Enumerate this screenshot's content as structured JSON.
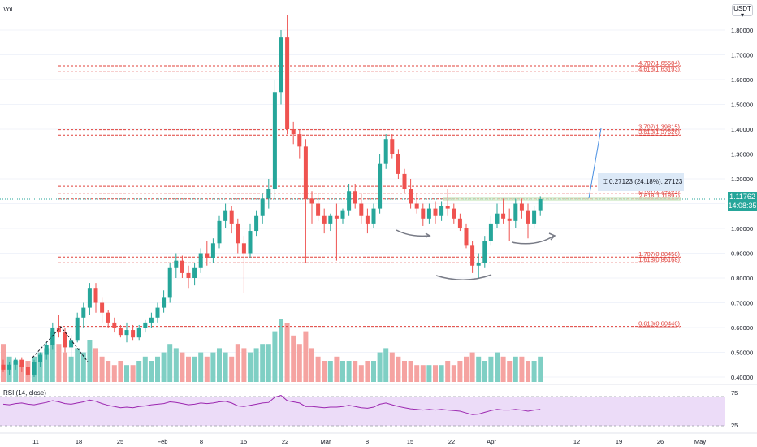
{
  "header": {
    "vol_label": "Vol",
    "currency": "USDT",
    "currency_arrow": "▾"
  },
  "rsi_label": "RSI (14, close)",
  "last_price": {
    "value": "1.11762",
    "countdown": "14:08:35",
    "color": "#26a69a"
  },
  "measure": {
    "text": "0.27123 (24.18%), 27123",
    "icon": "measure-icon"
  },
  "colors": {
    "up": "#26a69a",
    "down": "#ef5350",
    "up_vol": "#7fcfc4",
    "down_vol": "#f5a3a1",
    "fib": "#e0403a",
    "rsi_line": "#9c27b0",
    "rsi_band": "#ecdcf8",
    "measure_line": "#4a90e2",
    "grid": "#f0f3fa",
    "axis_text": "#131722",
    "curve": "#787b86"
  },
  "chart_data": {
    "type": "candlestick",
    "y_ticks": [
      "0.40000",
      "0.50000",
      "0.60000",
      "0.70000",
      "0.80000",
      "0.90000",
      "1.00000",
      "1.10000",
      "1.20000",
      "1.30000",
      "1.40000",
      "1.50000",
      "1.60000",
      "1.70000",
      "1.80000"
    ],
    "ylim": [
      0.37,
      1.86
    ],
    "x_ticks": [
      "11",
      "18",
      "25",
      "Feb",
      "8",
      "15",
      "22",
      "Mar",
      "8",
      "15",
      "22",
      "Apr",
      "12",
      "19",
      "26",
      "May"
    ],
    "fib_levels": [
      {
        "label": "4.707(1.65584)",
        "value": 1.65584
      },
      {
        "label": "4.618(1.63193)",
        "value": 1.63193
      },
      {
        "label": "3.707(1.39815)",
        "value": 1.39815
      },
      {
        "label": "3.618(1.37626)",
        "value": 1.37626
      },
      {
        "label": "2.816(1.16991)",
        "value": 1.16991
      },
      {
        "label": "2.707(1.14187)",
        "value": 1.14187
      },
      {
        "label": "2.618(1.11897)",
        "value": 1.11897
      },
      {
        "label": "1.707(0.88458)",
        "value": 0.88458
      },
      {
        "label": "1.618(0.86168)",
        "value": 0.86168
      },
      {
        "label": "0.618(0.60440)",
        "value": 0.6044
      }
    ],
    "candles": [
      [
        0.45,
        0.47,
        0.42,
        0.43
      ],
      [
        0.43,
        0.46,
        0.41,
        0.45
      ],
      [
        0.45,
        0.48,
        0.43,
        0.47
      ],
      [
        0.47,
        0.48,
        0.42,
        0.44
      ],
      [
        0.44,
        0.46,
        0.4,
        0.41
      ],
      [
        0.41,
        0.47,
        0.4,
        0.46
      ],
      [
        0.46,
        0.5,
        0.44,
        0.49
      ],
      [
        0.49,
        0.54,
        0.47,
        0.53
      ],
      [
        0.53,
        0.62,
        0.51,
        0.6
      ],
      [
        0.6,
        0.65,
        0.56,
        0.58
      ],
      [
        0.58,
        0.6,
        0.5,
        0.52
      ],
      [
        0.52,
        0.57,
        0.48,
        0.55
      ],
      [
        0.55,
        0.66,
        0.54,
        0.64
      ],
      [
        0.64,
        0.7,
        0.6,
        0.68
      ],
      [
        0.68,
        0.78,
        0.65,
        0.76
      ],
      [
        0.76,
        0.78,
        0.66,
        0.7
      ],
      [
        0.7,
        0.72,
        0.62,
        0.66
      ],
      [
        0.66,
        0.67,
        0.6,
        0.62
      ],
      [
        0.62,
        0.64,
        0.58,
        0.6
      ],
      [
        0.6,
        0.61,
        0.56,
        0.57
      ],
      [
        0.57,
        0.62,
        0.54,
        0.59
      ],
      [
        0.59,
        0.61,
        0.55,
        0.56
      ],
      [
        0.56,
        0.61,
        0.55,
        0.6
      ],
      [
        0.6,
        0.63,
        0.58,
        0.62
      ],
      [
        0.62,
        0.66,
        0.6,
        0.64
      ],
      [
        0.64,
        0.7,
        0.62,
        0.68
      ],
      [
        0.68,
        0.75,
        0.66,
        0.72
      ],
      [
        0.72,
        0.86,
        0.7,
        0.84
      ],
      [
        0.84,
        0.9,
        0.8,
        0.87
      ],
      [
        0.87,
        0.89,
        0.8,
        0.82
      ],
      [
        0.82,
        0.85,
        0.76,
        0.8
      ],
      [
        0.8,
        0.86,
        0.77,
        0.84
      ],
      [
        0.84,
        0.92,
        0.82,
        0.9
      ],
      [
        0.9,
        0.95,
        0.85,
        0.88
      ],
      [
        0.88,
        0.96,
        0.86,
        0.94
      ],
      [
        0.94,
        1.05,
        0.92,
        1.03
      ],
      [
        1.03,
        1.1,
        1.0,
        1.07
      ],
      [
        1.07,
        1.09,
        0.98,
        1.02
      ],
      [
        1.02,
        1.04,
        0.9,
        0.94
      ],
      [
        0.94,
        0.97,
        0.74,
        0.9
      ],
      [
        0.9,
        1.02,
        0.88,
        0.99
      ],
      [
        0.99,
        1.07,
        0.97,
        1.05
      ],
      [
        1.05,
        1.14,
        1.02,
        1.12
      ],
      [
        1.12,
        1.2,
        1.08,
        1.16
      ],
      [
        1.16,
        1.6,
        1.12,
        1.55
      ],
      [
        1.55,
        1.8,
        1.5,
        1.77
      ],
      [
        1.77,
        1.86,
        1.38,
        1.4
      ],
      [
        1.4,
        1.43,
        1.34,
        1.38
      ],
      [
        1.38,
        1.4,
        1.28,
        1.33
      ],
      [
        1.33,
        1.36,
        0.86,
        1.12
      ],
      [
        1.12,
        1.15,
        1.02,
        1.1
      ],
      [
        1.1,
        1.14,
        1.03,
        1.05
      ],
      [
        1.05,
        1.08,
        0.98,
        1.02
      ],
      [
        1.02,
        1.06,
        0.99,
        1.05
      ],
      [
        1.05,
        1.1,
        0.87,
        1.04
      ],
      [
        1.04,
        1.08,
        1.02,
        1.07
      ],
      [
        1.07,
        1.18,
        1.05,
        1.15
      ],
      [
        1.15,
        1.18,
        1.08,
        1.1
      ],
      [
        1.1,
        1.14,
        1.02,
        1.05
      ],
      [
        1.05,
        1.08,
        0.98,
        1.02
      ],
      [
        1.02,
        1.1,
        1.0,
        1.08
      ],
      [
        1.08,
        1.3,
        1.06,
        1.26
      ],
      [
        1.26,
        1.38,
        1.24,
        1.36
      ],
      [
        1.36,
        1.38,
        1.28,
        1.3
      ],
      [
        1.3,
        1.32,
        1.2,
        1.22
      ],
      [
        1.22,
        1.24,
        1.14,
        1.16
      ],
      [
        1.16,
        1.2,
        1.08,
        1.1
      ],
      [
        1.1,
        1.14,
        1.06,
        1.08
      ],
      [
        1.08,
        1.1,
        1.01,
        1.04
      ],
      [
        1.04,
        1.1,
        1.02,
        1.08
      ],
      [
        1.08,
        1.11,
        1.02,
        1.05
      ],
      [
        1.05,
        1.11,
        1.03,
        1.09
      ],
      [
        1.09,
        1.16,
        1.05,
        1.08
      ],
      [
        1.08,
        1.1,
        1.02,
        1.04
      ],
      [
        1.04,
        1.06,
        0.99,
        1.0
      ],
      [
        1.0,
        1.02,
        0.92,
        0.93
      ],
      [
        0.93,
        0.95,
        0.82,
        0.85
      ],
      [
        0.85,
        0.9,
        0.8,
        0.86
      ],
      [
        0.86,
        0.97,
        0.84,
        0.95
      ],
      [
        0.95,
        1.05,
        0.93,
        1.02
      ],
      [
        1.02,
        1.1,
        1.0,
        1.06
      ],
      [
        1.06,
        1.12,
        1.02,
        1.04
      ],
      [
        1.04,
        1.08,
        0.95,
        1.03
      ],
      [
        1.03,
        1.12,
        1.0,
        1.1
      ],
      [
        1.1,
        1.12,
        1.04,
        1.07
      ],
      [
        1.07,
        1.1,
        0.96,
        1.02
      ],
      [
        1.02,
        1.09,
        1.0,
        1.07
      ],
      [
        1.07,
        1.13,
        1.05,
        1.118
      ]
    ],
    "volumes": [
      0.9,
      0.6,
      0.5,
      0.4,
      0.5,
      0.6,
      0.7,
      0.8,
      1.2,
      0.9,
      0.7,
      0.6,
      0.8,
      0.7,
      1.0,
      0.8,
      0.6,
      0.5,
      0.4,
      0.5,
      0.4,
      0.4,
      0.5,
      0.6,
      0.5,
      0.6,
      0.7,
      0.9,
      0.8,
      0.7,
      0.6,
      0.6,
      0.7,
      0.6,
      0.7,
      0.8,
      0.7,
      0.6,
      0.9,
      0.8,
      0.7,
      0.8,
      0.9,
      0.9,
      1.2,
      1.5,
      1.4,
      1.1,
      0.9,
      1.2,
      0.8,
      0.6,
      0.5,
      0.5,
      0.6,
      0.5,
      0.5,
      0.5,
      0.4,
      0.5,
      0.5,
      0.7,
      0.8,
      0.7,
      0.6,
      0.5,
      0.5,
      0.4,
      0.4,
      0.4,
      0.4,
      0.4,
      0.5,
      0.4,
      0.5,
      0.6,
      0.7,
      0.6,
      0.5,
      0.6,
      0.7,
      0.6,
      0.5,
      0.6,
      0.6,
      0.5,
      0.5,
      0.6
    ],
    "rsi": [
      62,
      61,
      63,
      64,
      62,
      61,
      63,
      65,
      68,
      66,
      63,
      62,
      64,
      66,
      69,
      67,
      63,
      60,
      58,
      56,
      57,
      56,
      58,
      59,
      61,
      62,
      63,
      66,
      65,
      63,
      61,
      62,
      64,
      63,
      64,
      66,
      67,
      64,
      59,
      58,
      60,
      62,
      64,
      65,
      74,
      77,
      68,
      66,
      64,
      58,
      58,
      57,
      56,
      57,
      57,
      58,
      60,
      58,
      56,
      55,
      57,
      62,
      64,
      61,
      58,
      56,
      54,
      53,
      52,
      53,
      52,
      53,
      52,
      51,
      50,
      47,
      44,
      45,
      48,
      51,
      53,
      52,
      52,
      53,
      52,
      50,
      52,
      53
    ]
  }
}
